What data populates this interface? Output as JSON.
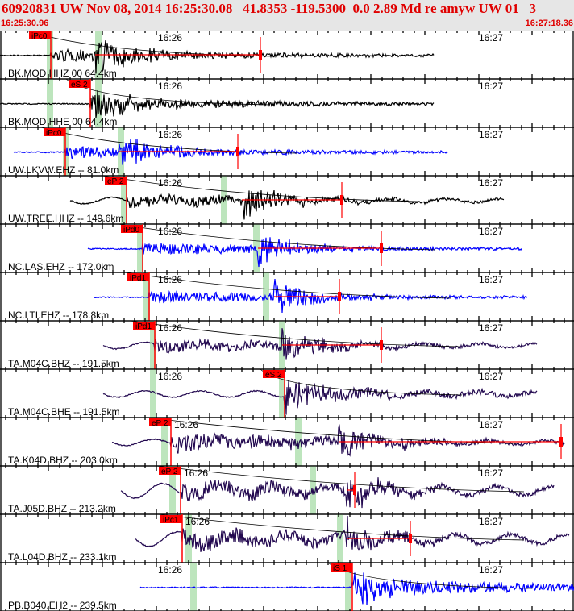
{
  "header": {
    "title": "60920831 UW Nov 08, 2014 16:25:30.08   41.8353 -119.5300  0.0 2.89 Md re amyw UW 01   3",
    "start_time": "16:25:30.96",
    "end_time": "16:27:18.36"
  },
  "time_labels": [
    "16:26",
    "16:27"
  ],
  "colors": {
    "pick": "#ff0000",
    "pick_window": "#bde5bd",
    "black": "#000000",
    "blue": "#0000ff",
    "indigo": "#22084f",
    "header_text": "#e00000"
  },
  "channels": [
    {
      "label": "BK.MOD HHZ 00 64.4km",
      "color": "black",
      "pick": "iPc0"
    },
    {
      "label": "BK.MOD HHE 00 64.4km",
      "color": "black",
      "pick": "eS 2"
    },
    {
      "label": "UW.LKVW.EHZ -- 81.0km",
      "color": "blue",
      "pick": "iPc0"
    },
    {
      "label": "UW.TREE.HHZ -- 149.6km",
      "color": "black",
      "pick": "eP 2"
    },
    {
      "label": "NC.LAS.EHZ -- 172.0km",
      "color": "blue",
      "pick": "iPd0"
    },
    {
      "label": "NC.LTI.EHZ -- 178.8km",
      "color": "blue",
      "pick": "iPd1"
    },
    {
      "label": "TA.M04C.BHZ -- 191.5km",
      "color": "indigo",
      "pick": "iPd1"
    },
    {
      "label": "TA.M04C.BHE -- 191.5km",
      "color": "indigo",
      "pick": "eS 2"
    },
    {
      "label": "TA.K04D.BHZ -- 203.0km",
      "color": "indigo",
      "pick": "eP 2"
    },
    {
      "label": "TA.J05D.BHZ -- 213.2km",
      "color": "indigo",
      "pick": "eP 2"
    },
    {
      "label": "TA.L04D.BHZ -- 233.1km",
      "color": "indigo",
      "pick": "iPc1"
    },
    {
      "label": "PB.B040.EH2 -- 239.5km",
      "color": "blue",
      "pick": "iS 1"
    }
  ]
}
